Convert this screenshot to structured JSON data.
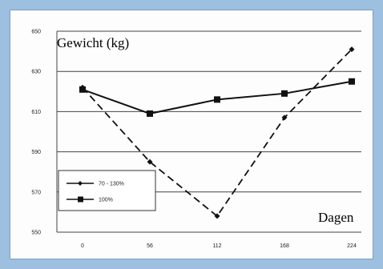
{
  "chart_data": {
    "type": "line",
    "ylabel": "Gewicht (kg)",
    "xlabel": "Dagen",
    "x": [
      "0",
      "56",
      "112",
      "168",
      "224"
    ],
    "ylim": [
      550,
      650
    ],
    "yticks": [
      "550",
      "570",
      "590",
      "610",
      "630",
      "650"
    ],
    "grid": "horizontal",
    "legend_position": "lower-left",
    "series": [
      {
        "name": "70 - 130%",
        "values": [
          622,
          585,
          558,
          607,
          641
        ],
        "line_style": "dashed",
        "marker": "diamond",
        "color": "#111111"
      },
      {
        "name": "100%",
        "values": [
          621,
          609,
          616,
          619,
          625
        ],
        "line_style": "solid",
        "marker": "square",
        "color": "#111111"
      }
    ]
  }
}
